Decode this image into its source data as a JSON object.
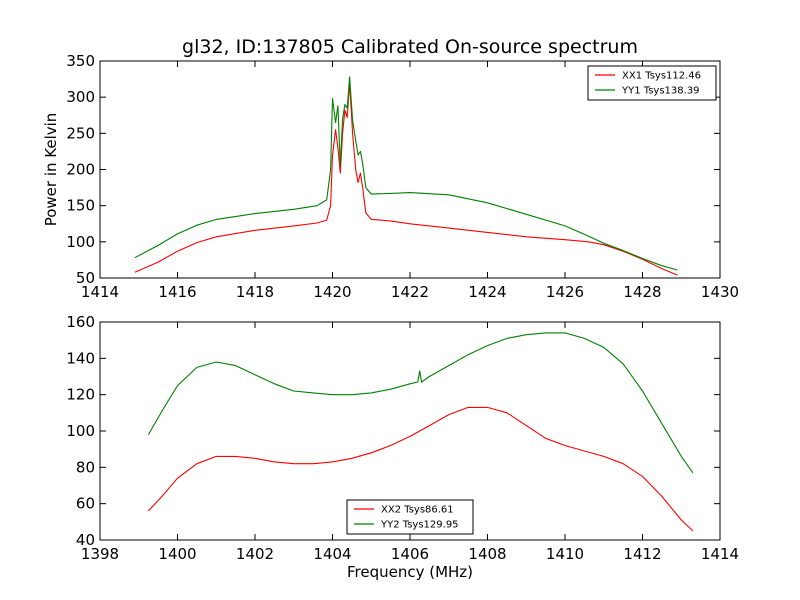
{
  "figure": {
    "title": "gl32, ID:137805 Calibrated On-source spectrum"
  },
  "chart_data": [
    {
      "type": "line",
      "title": "gl32, ID:137805 Calibrated On-source spectrum",
      "xlabel": "",
      "ylabel": "Power in Kelvin",
      "xlim": [
        1414,
        1430
      ],
      "ylim": [
        50,
        350
      ],
      "xticks": [
        1414,
        1416,
        1418,
        1420,
        1422,
        1424,
        1426,
        1428,
        1430
      ],
      "yticks": [
        50,
        100,
        150,
        200,
        250,
        300,
        350
      ],
      "grid": false,
      "legend": "top-right",
      "series": [
        {
          "name": "XX1 Tsys112.46",
          "color": "#ff0000",
          "x": [
            1414.9,
            1415.5,
            1416.0,
            1416.5,
            1417.0,
            1418.0,
            1419.0,
            1419.6,
            1419.85,
            1419.95,
            1420.0,
            1420.08,
            1420.14,
            1420.2,
            1420.26,
            1420.32,
            1420.38,
            1420.44,
            1420.52,
            1420.6,
            1420.66,
            1420.72,
            1420.78,
            1420.86,
            1421.0,
            1421.5,
            1422.0,
            1423.0,
            1424.0,
            1425.0,
            1426.0,
            1426.6,
            1427.0,
            1427.5,
            1428.0,
            1428.5,
            1428.9
          ],
          "y": [
            58,
            72,
            87,
            99,
            107,
            116,
            122,
            126,
            130,
            150,
            220,
            255,
            230,
            195,
            250,
            282,
            272,
            320,
            250,
            200,
            182,
            195,
            175,
            140,
            131,
            129,
            125,
            119,
            113,
            107,
            103,
            100,
            96,
            87,
            76,
            63,
            54
          ]
        },
        {
          "name": "YY1 Tsys138.39",
          "color": "#008000",
          "x": [
            1414.9,
            1415.5,
            1416.0,
            1416.5,
            1417.0,
            1418.0,
            1419.0,
            1419.6,
            1419.85,
            1419.95,
            1420.0,
            1420.08,
            1420.14,
            1420.2,
            1420.26,
            1420.32,
            1420.38,
            1420.44,
            1420.52,
            1420.6,
            1420.66,
            1420.72,
            1420.78,
            1420.86,
            1421.0,
            1421.5,
            1422.0,
            1423.0,
            1424.0,
            1425.0,
            1426.0,
            1426.6,
            1427.0,
            1427.5,
            1428.0,
            1428.5,
            1428.9
          ],
          "y": [
            78,
            95,
            111,
            123,
            131,
            139,
            145,
            150,
            158,
            200,
            298,
            265,
            288,
            205,
            270,
            290,
            285,
            328,
            268,
            240,
            220,
            225,
            208,
            175,
            166,
            167,
            168,
            165,
            154,
            138,
            122,
            108,
            98,
            88,
            77,
            67,
            61
          ]
        }
      ]
    },
    {
      "type": "line",
      "title": "",
      "xlabel": "Frequency (MHz)",
      "ylabel": "",
      "xlim": [
        1398,
        1414
      ],
      "ylim": [
        40,
        160
      ],
      "xticks": [
        1398,
        1400,
        1402,
        1404,
        1406,
        1408,
        1410,
        1412,
        1414
      ],
      "yticks": [
        40,
        60,
        80,
        100,
        120,
        140,
        160
      ],
      "grid": false,
      "legend": "bottom-center",
      "series": [
        {
          "name": "XX2 Tsys86.61",
          "color": "#ff0000",
          "x": [
            1399.25,
            1399.6,
            1400.0,
            1400.5,
            1401.0,
            1401.5,
            1402.0,
            1402.5,
            1403.0,
            1403.5,
            1404.0,
            1404.5,
            1405.0,
            1405.5,
            1406.0,
            1406.5,
            1407.0,
            1407.5,
            1408.0,
            1408.5,
            1409.0,
            1409.5,
            1410.0,
            1410.5,
            1411.0,
            1411.5,
            1412.0,
            1412.5,
            1413.0,
            1413.3
          ],
          "y": [
            56,
            64,
            74,
            82,
            86,
            86,
            85,
            83,
            82,
            82,
            83,
            85,
            88,
            92,
            97,
            103,
            109,
            113,
            113,
            110,
            103,
            96,
            92,
            89,
            86,
            82,
            75,
            64,
            51,
            45
          ]
        },
        {
          "name": "YY2 Tsys129.95",
          "color": "#008000",
          "x": [
            1399.25,
            1399.6,
            1400.0,
            1400.5,
            1401.0,
            1401.5,
            1402.0,
            1402.5,
            1403.0,
            1403.5,
            1404.0,
            1404.5,
            1405.0,
            1405.5,
            1406.0,
            1406.2,
            1406.25,
            1406.3,
            1406.5,
            1407.0,
            1407.5,
            1408.0,
            1408.5,
            1409.0,
            1409.5,
            1410.0,
            1410.5,
            1411.0,
            1411.5,
            1412.0,
            1412.5,
            1413.0,
            1413.3
          ],
          "y": [
            98,
            111,
            125,
            135,
            138,
            136,
            131,
            126,
            122,
            121,
            120,
            120,
            121,
            123,
            126,
            127,
            133,
            127,
            130,
            136,
            142,
            147,
            151,
            153,
            154,
            154,
            151,
            146,
            137,
            122,
            104,
            86,
            77
          ]
        }
      ]
    }
  ]
}
